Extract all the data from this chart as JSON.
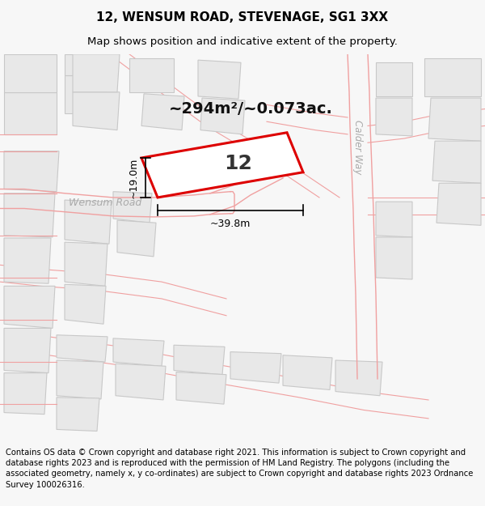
{
  "title": "12, WENSUM ROAD, STEVENAGE, SG1 3XX",
  "subtitle": "Map shows position and indicative extent of the property.",
  "footer": "Contains OS data © Crown copyright and database right 2021. This information is subject to Crown copyright and database rights 2023 and is reproduced with the permission of HM Land Registry. The polygons (including the associated geometry, namely x, y co-ordinates) are subject to Crown copyright and database rights 2023 Ordnance Survey 100026316.",
  "bg_color": "#f7f7f7",
  "map_bg": "#ffffff",
  "highlight_color": "#dd0000",
  "road_outline": "#f0a0a0",
  "building_fill": "#e8e8e8",
  "building_edge": "#c8c8c8",
  "pink_outline": "#f0a0a0",
  "label_area": "~294m²/~0.073ac.",
  "label_number": "12",
  "label_wensum": "Wensum Road",
  "label_calder": "Calder Way",
  "dim_width": "~39.8m",
  "dim_height": "~19.0m",
  "title_fontsize": 11,
  "subtitle_fontsize": 9.5,
  "footer_fontsize": 7.2
}
